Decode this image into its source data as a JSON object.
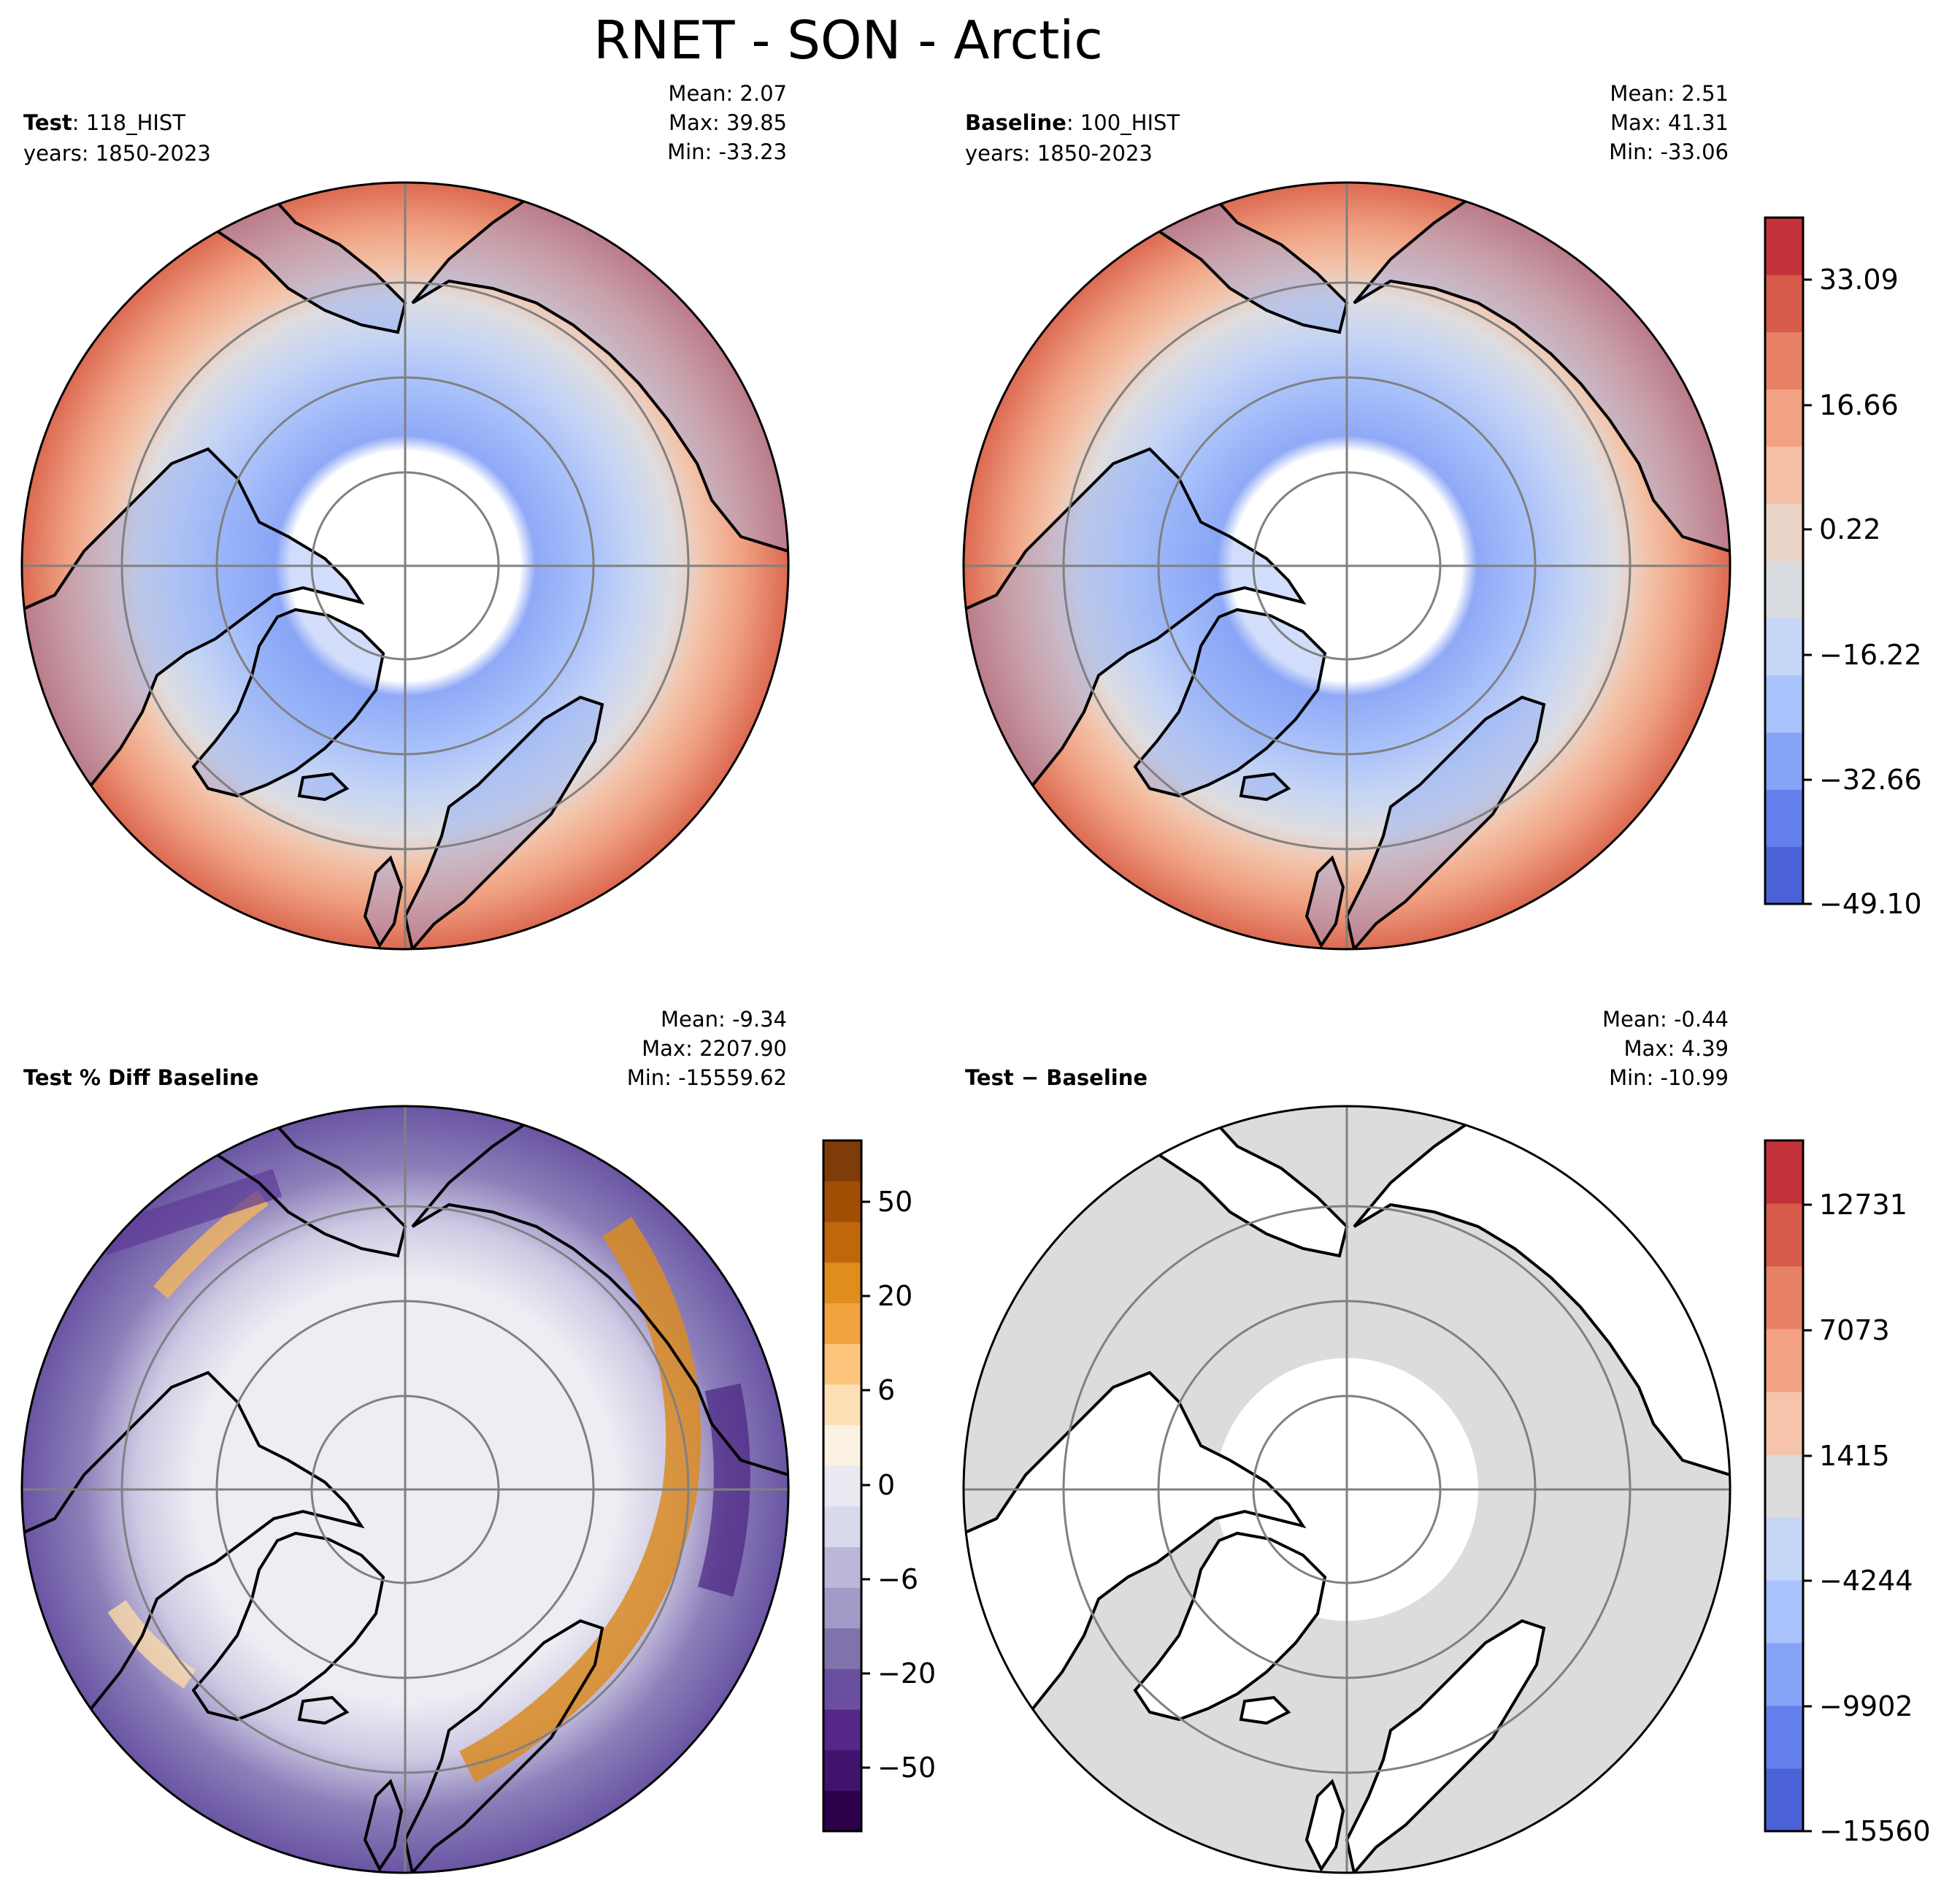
{
  "title": "RNET - SON - Arctic",
  "panels": {
    "test": {
      "label_bold": "Test",
      "label_rest": ": 118_HIST",
      "years": "years: 1850-2023",
      "mean": "Mean:  2.07",
      "max": "Max: 39.85",
      "min": "Min: -33.23"
    },
    "baseline": {
      "label_bold": "Baseline",
      "label_rest": ": 100_HIST",
      "years": "years: 1850-2023",
      "mean": "Mean:  2.51",
      "max": "Max: 41.31",
      "min": "Min: -33.06"
    },
    "pct_diff": {
      "label_bold": "Test % Diff Baseline",
      "mean": "Mean: -9.34",
      "max": "Max: 2207.90",
      "min": "Min: -15559.62"
    },
    "diff": {
      "label_bold": "Test − Baseline",
      "mean": "Mean: -0.44",
      "max": "Max:  4.39",
      "min": "Min: -10.99"
    }
  },
  "colorbars": {
    "main": {
      "ticks": [
        "33.09",
        "16.66",
        "0.22",
        "−16.22",
        "−32.66",
        "−49.10"
      ],
      "colors": [
        "#4a62d6",
        "#6380ec",
        "#85a3f7",
        "#a8c2fb",
        "#c5d6f7",
        "#d8dbe0",
        "#ead4c7",
        "#f5bfa6",
        "#f3a283",
        "#e78163",
        "#d75b4a",
        "#c3323a"
      ]
    },
    "pct": {
      "ticks": [
        "50",
        "20",
        "6",
        "0",
        "−6",
        "−20",
        "−50"
      ],
      "colors": [
        "#2d004b",
        "#40146e",
        "#542788",
        "#6a4fa0",
        "#8073ac",
        "#a09bc7",
        "#bcb6d8",
        "#d8daeb",
        "#e9e9f1",
        "#fbf1e3",
        "#fee0b6",
        "#fdc57c",
        "#f1a340",
        "#df8d1d",
        "#c1670b",
        "#a24f05",
        "#7f3b08"
      ]
    },
    "diff": {
      "ticks": [
        "12731",
        "7073",
        "1415",
        "−4244",
        "−9902",
        "−15560"
      ],
      "colors": [
        "#4a62d6",
        "#6380ec",
        "#85a3f7",
        "#a8c2fb",
        "#c5d6f7",
        "#dcdcdc",
        "#f5c4ab",
        "#f3a283",
        "#e78163",
        "#d75b4a",
        "#c3323a"
      ]
    }
  }
}
